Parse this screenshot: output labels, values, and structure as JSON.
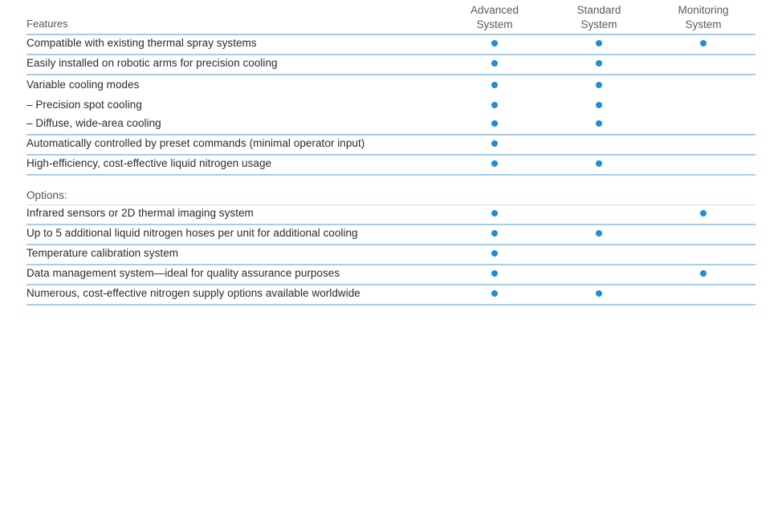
{
  "table": {
    "features_header": "Features",
    "columns": [
      {
        "line1": "Advanced",
        "line2": "System"
      },
      {
        "line1": "Standard",
        "line2": "System"
      },
      {
        "line1": "Monitoring",
        "line2": "System"
      }
    ],
    "dot_color": "#1e8fd6",
    "rows": [
      {
        "label": "Compatible with existing thermal spray systems",
        "marks": [
          true,
          true,
          true
        ]
      },
      {
        "label": "Easily installed on robotic arms for precision cooling",
        "marks": [
          true,
          true,
          false
        ]
      },
      {
        "label": "Variable cooling modes",
        "marks": [
          true,
          true,
          false
        ]
      },
      {
        "label": "– Precision spot cooling",
        "marks": [
          true,
          true,
          false
        ]
      },
      {
        "label": "– Diffuse, wide-area cooling",
        "marks": [
          true,
          true,
          false
        ]
      },
      {
        "label": "Automatically controlled by preset commands (minimal operator input)",
        "marks": [
          true,
          false,
          false
        ]
      },
      {
        "label": "High-efficiency, cost-effective liquid nitrogen usage",
        "marks": [
          true,
          true,
          false
        ]
      }
    ],
    "options_label": "Options:",
    "option_rows": [
      {
        "label": "Infrared sensors or 2D thermal imaging system",
        "marks": [
          true,
          false,
          true
        ]
      },
      {
        "label": "Up to 5 additional liquid nitrogen hoses per unit for additional cooling",
        "marks": [
          true,
          true,
          false
        ]
      },
      {
        "label": "Temperature calibration system",
        "marks": [
          true,
          false,
          false
        ]
      },
      {
        "label": "Data management system—ideal for quality assurance purposes",
        "marks": [
          true,
          false,
          true
        ]
      },
      {
        "label": "Numerous, cost-effective nitrogen supply options available worldwide",
        "marks": [
          true,
          true,
          false
        ]
      }
    ]
  }
}
